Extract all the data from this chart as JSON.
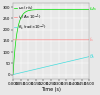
{
  "xlabel": "Time (s)",
  "xlim": [
    0.0,
    0.5
  ],
  "ylim": [
    -20,
    320
  ],
  "yticks": [
    0,
    50,
    100,
    150,
    200,
    250,
    300
  ],
  "xticks": [
    0.0,
    0.05,
    0.1,
    0.15,
    0.2,
    0.25,
    0.3,
    0.35,
    0.4,
    0.45,
    0.5
  ],
  "legend": [
    {
      "label": "$\\omega_s$ (r/s)",
      "color": "#00dd00"
    },
    {
      "label": "$i_s$ (A×10$^{-1}$)",
      "color": "#ff8888"
    },
    {
      "label": "$\\theta_s$ (rad×10$^{-2}$)",
      "color": "#44dddd"
    }
  ],
  "green_plateau": 290,
  "green_tau": 0.025,
  "red_level": 155,
  "cyan_slope": 160,
  "background_color": "#e8e8e8",
  "grid_color": "#ffffff",
  "label_fontsize": 3.5,
  "tick_fontsize": 2.8,
  "legend_fontsize": 2.8,
  "line_width": 0.5
}
